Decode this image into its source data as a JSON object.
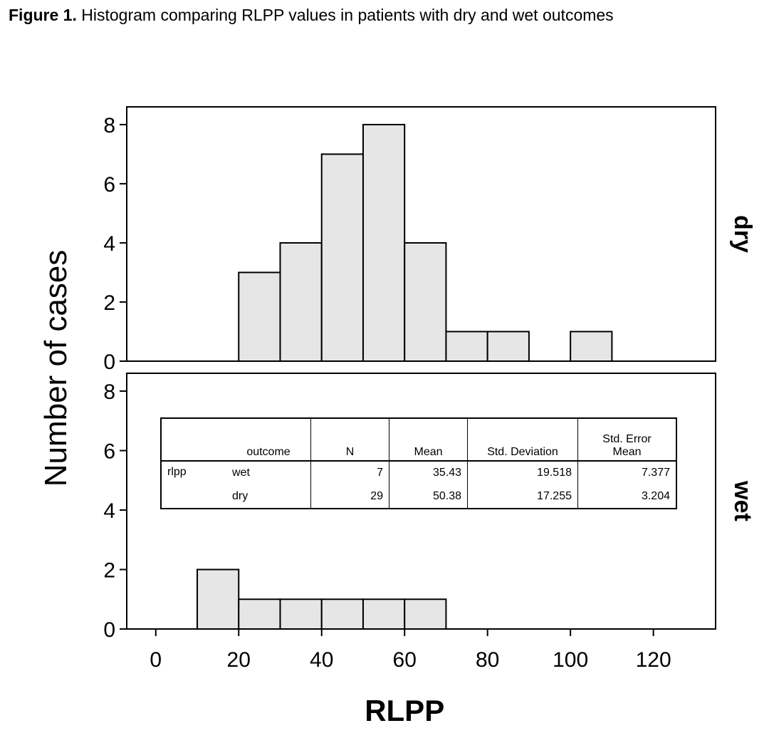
{
  "caption": {
    "label": "Figure 1.",
    "text": "Histogram comparing RLPP values in patients with dry and wet outcomes"
  },
  "chart_data": {
    "type": "bar",
    "subtype": "histogram",
    "xlabel": "RLPP",
    "ylabel": "Number of cases",
    "xlim": [
      -7,
      135
    ],
    "ylim": [
      0,
      8.6
    ],
    "x_ticks": [
      0,
      20,
      40,
      60,
      80,
      100,
      120
    ],
    "y_ticks": [
      0,
      2,
      4,
      6,
      8
    ],
    "bin_width": 10,
    "bar_color": "#e6e6e6",
    "panels": [
      {
        "name": "dry",
        "bins": [
          {
            "x0": 20,
            "x1": 30,
            "count": 3
          },
          {
            "x0": 30,
            "x1": 40,
            "count": 4
          },
          {
            "x0": 40,
            "x1": 50,
            "count": 7
          },
          {
            "x0": 50,
            "x1": 60,
            "count": 8
          },
          {
            "x0": 60,
            "x1": 70,
            "count": 4
          },
          {
            "x0": 70,
            "x1": 80,
            "count": 1
          },
          {
            "x0": 80,
            "x1": 90,
            "count": 1
          },
          {
            "x0": 100,
            "x1": 110,
            "count": 1
          }
        ]
      },
      {
        "name": "wet",
        "bins": [
          {
            "x0": 10,
            "x1": 20,
            "count": 2
          },
          {
            "x0": 20,
            "x1": 30,
            "count": 1
          },
          {
            "x0": 30,
            "x1": 40,
            "count": 1
          },
          {
            "x0": 40,
            "x1": 50,
            "count": 1
          },
          {
            "x0": 50,
            "x1": 60,
            "count": 1
          },
          {
            "x0": 60,
            "x1": 70,
            "count": 1
          }
        ]
      }
    ]
  },
  "stats_table": {
    "headers": {
      "outcome": "outcome",
      "n": "N",
      "mean": "Mean",
      "sd": "Std. Deviation",
      "se_line1": "Std. Error",
      "se_line2": "Mean"
    },
    "variable": "rlpp",
    "rows": [
      {
        "outcome": "wet",
        "n": "7",
        "mean": "35.43",
        "sd": "19.518",
        "se": "7.377"
      },
      {
        "outcome": "dry",
        "n": "29",
        "mean": "50.38",
        "sd": "17.255",
        "se": "3.204"
      }
    ]
  }
}
